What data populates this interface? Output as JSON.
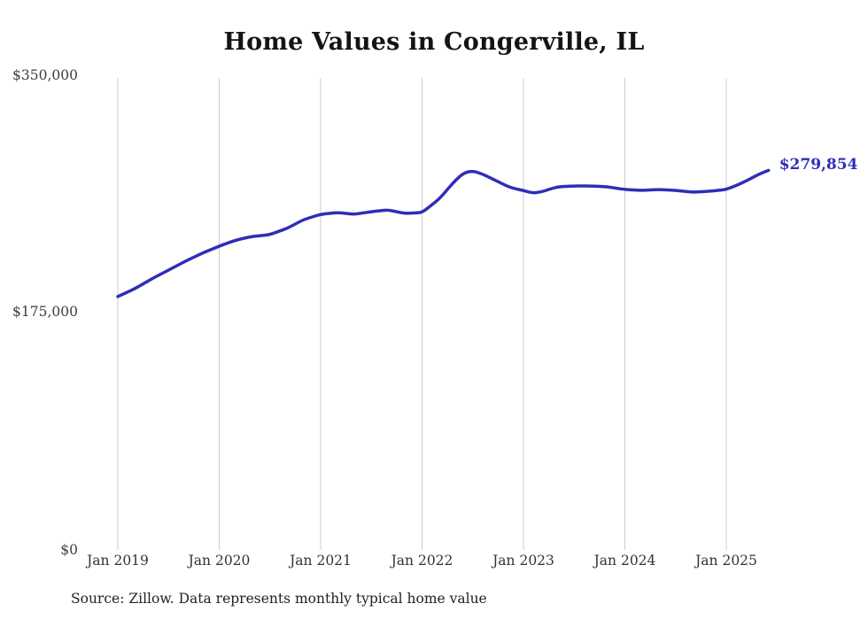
{
  "page": {
    "title": "Home Values in Congerville, IL",
    "source_note": "Source: Zillow. Data represents monthly typical home value"
  },
  "chart_data": {
    "type": "line",
    "title": "Home Values in Congerville, IL",
    "unit": "USD",
    "ylim": [
      0,
      350000
    ],
    "grid": "vertical-only",
    "legend": "none",
    "line_color": "#2e2eb8",
    "grid_color": "#cccccc",
    "yticks": [
      {
        "label": "$350,000",
        "value": 350000
      },
      {
        "label": "$175,000",
        "value": 175000
      },
      {
        "label": "$0",
        "value": 0
      }
    ],
    "xticks": [
      {
        "label": "Jan 2019",
        "month_index": 0
      },
      {
        "label": "Jan 2020",
        "month_index": 12
      },
      {
        "label": "Jan 2021",
        "month_index": 24
      },
      {
        "label": "Jan 2022",
        "month_index": 36
      },
      {
        "label": "Jan 2023",
        "month_index": 48
      },
      {
        "label": "Jan 2024",
        "month_index": 60
      },
      {
        "label": "Jan 2025",
        "month_index": 72
      }
    ],
    "end_label": "$279,854",
    "end_value": 279854,
    "x": [
      "2019-01",
      "2019-02",
      "2019-03",
      "2019-04",
      "2019-05",
      "2019-06",
      "2019-07",
      "2019-08",
      "2019-09",
      "2019-10",
      "2019-11",
      "2019-12",
      "2020-01",
      "2020-02",
      "2020-03",
      "2020-04",
      "2020-05",
      "2020-06",
      "2020-07",
      "2020-08",
      "2020-09",
      "2020-10",
      "2020-11",
      "2020-12",
      "2021-01",
      "2021-02",
      "2021-03",
      "2021-04",
      "2021-05",
      "2021-06",
      "2021-07",
      "2021-08",
      "2021-09",
      "2021-10",
      "2021-11",
      "2021-12",
      "2022-01",
      "2022-02",
      "2022-03",
      "2022-04",
      "2022-05",
      "2022-06",
      "2022-07",
      "2022-08",
      "2022-09",
      "2022-10",
      "2022-11",
      "2022-12",
      "2023-01",
      "2023-02",
      "2023-03",
      "2023-04",
      "2023-05",
      "2023-06",
      "2023-07",
      "2023-08",
      "2023-09",
      "2023-10",
      "2023-11",
      "2023-12",
      "2024-01",
      "2024-02",
      "2024-03",
      "2024-04",
      "2024-05",
      "2024-06",
      "2024-07",
      "2024-08",
      "2024-09",
      "2024-10",
      "2024-11",
      "2024-12",
      "2025-01",
      "2025-02",
      "2025-03",
      "2025-04",
      "2025-05",
      "2025-06"
    ],
    "values": [
      186800,
      189700,
      192600,
      196200,
      199800,
      203100,
      206300,
      209600,
      212900,
      215800,
      218800,
      221400,
      224000,
      226300,
      228500,
      229900,
      231200,
      231800,
      232500,
      234800,
      237000,
      240300,
      243600,
      245500,
      247500,
      248100,
      248800,
      248100,
      247500,
      248500,
      249400,
      250100,
      250700,
      249400,
      248100,
      248400,
      248800,
      253700,
      258600,
      265800,
      272900,
      278200,
      279500,
      277500,
      274600,
      271600,
      268400,
      266300,
      265100,
      263200,
      263800,
      265800,
      267700,
      268100,
      268400,
      268400,
      268400,
      268000,
      267700,
      266700,
      265800,
      265400,
      265100,
      265400,
      265800,
      265400,
      265100,
      264500,
      263800,
      264100,
      264500,
      265100,
      265800,
      268300,
      271000,
      274100,
      277500,
      279854
    ]
  }
}
